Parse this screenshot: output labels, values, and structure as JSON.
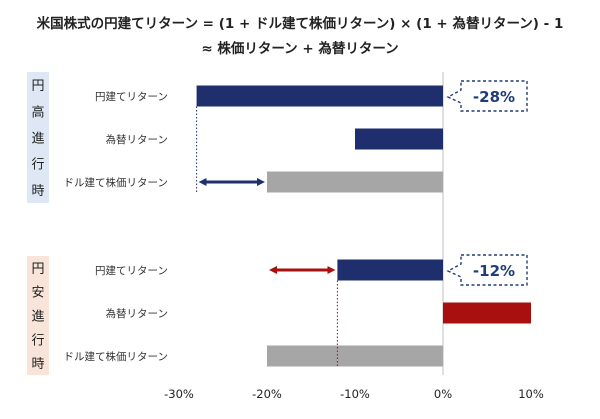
{
  "title_line1": "米国株式の円建てリターン = (1 + ドル建て株価リターン) × (1 + 為替リターン) - 1",
  "title_line2": "≈ 株価リターン + 為替リターン",
  "colors": {
    "yen_return": "#1f2f6e",
    "fx_negative": "#1f2f6e",
    "fx_positive": "#a80f0f",
    "usd_return": "#a6a6a6",
    "arrow_top": "#1f2f6e",
    "arrow_bottom": "#a80f0f",
    "section_top_bg": "#dde8f4",
    "section_bottom_bg": "#f8e4d9"
  },
  "chart_data": {
    "type": "bar",
    "orientation": "horizontal",
    "xlim": [
      -0.3,
      0.1
    ],
    "xticks": [
      -0.3,
      -0.2,
      -0.1,
      0.0,
      0.1
    ],
    "xtick_labels": [
      "-30%",
      "-20%",
      "-10%",
      "0%",
      "10%"
    ],
    "grid": false,
    "groups": [
      {
        "label": "円高進行時",
        "label_chars": [
          "円",
          "高",
          "進",
          "行",
          "時"
        ],
        "bars": [
          {
            "category": "円建てリターン",
            "value": -0.28,
            "color": "#1f2f6e"
          },
          {
            "category": "為替リターン",
            "value": -0.1,
            "color": "#1f2f6e"
          },
          {
            "category": "ドル建て株価リターン",
            "value": -0.2,
            "color": "#a6a6a6"
          }
        ],
        "callout": "-28%"
      },
      {
        "label": "円安進行時",
        "label_chars": [
          "円",
          "安",
          "進",
          "行",
          "時"
        ],
        "bars": [
          {
            "category": "円建てリターン",
            "value": -0.12,
            "color": "#1f2f6e"
          },
          {
            "category": "為替リターン",
            "value": 0.1,
            "color": "#a80f0f"
          },
          {
            "category": "ドル建て株価リターン",
            "value": -0.2,
            "color": "#a6a6a6"
          }
        ],
        "callout": "-12%"
      }
    ]
  }
}
